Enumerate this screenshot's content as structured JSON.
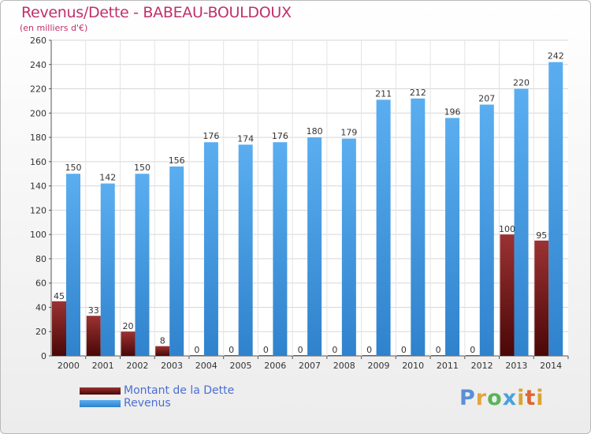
{
  "header": {
    "title": "Revenus/Dette - BABEAU-BOULDOUX",
    "subtitle": "(en milliers d'€)"
  },
  "legend": {
    "debt_label": "Montant de la Dette",
    "revenue_label": "Revenus"
  },
  "logo": {
    "text": "Proxiti"
  },
  "colors": {
    "debt": "#7a1a1a",
    "revenue": "#3f97de",
    "title": "#c0306a",
    "legend_text": "#4a6ed6"
  },
  "chart_data": {
    "type": "bar",
    "title": "Revenus/Dette - BABEAU-BOULDOUX",
    "subtitle": "(en milliers d'€)",
    "categories": [
      "2000",
      "2001",
      "2002",
      "2003",
      "2004",
      "2005",
      "2006",
      "2007",
      "2008",
      "2009",
      "2010",
      "2011",
      "2012",
      "2013",
      "2014"
    ],
    "series": [
      {
        "name": "Montant de la Dette",
        "values": [
          45,
          33,
          20,
          8,
          0,
          0,
          0,
          0,
          0,
          0,
          0,
          0,
          0,
          100,
          95
        ]
      },
      {
        "name": "Revenus",
        "values": [
          150,
          142,
          150,
          156,
          176,
          174,
          176,
          180,
          179,
          211,
          212,
          196,
          207,
          220,
          242
        ]
      }
    ],
    "ylim": [
      0,
      260
    ],
    "yticks": [
      0,
      20,
      40,
      60,
      80,
      100,
      120,
      140,
      160,
      180,
      200,
      220,
      240,
      260
    ],
    "grid": true,
    "legend_position": "bottom-left"
  }
}
